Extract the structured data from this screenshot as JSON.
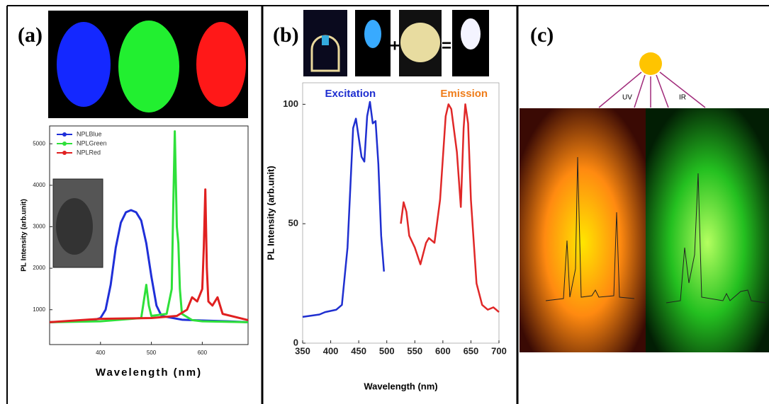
{
  "panel_labels": [
    "(a)",
    "(b)",
    "(c)"
  ],
  "led_symbols": [
    "+",
    "="
  ],
  "panel_c_labels": [
    "UV",
    "IR"
  ],
  "chart_data": [
    {
      "type": "line",
      "xlabel": "Wavelength (nm)",
      "ylabel": "PL Intensity (arb.unit)",
      "xlim": [
        300,
        690
      ],
      "ylim": [
        160,
        5430
      ],
      "xticks": [
        400,
        500,
        600
      ],
      "yticks": [
        1000,
        2000,
        3000,
        4000,
        5000
      ],
      "legend": "upper left",
      "series": [
        {
          "name": "NPLBlue",
          "color": "#1f2fd8",
          "x": [
            300,
            350,
            390,
            400,
            410,
            420,
            430,
            440,
            450,
            460,
            470,
            480,
            490,
            500,
            510,
            520,
            560,
            600,
            650,
            690
          ],
          "values": [
            700,
            720,
            760,
            800,
            1000,
            1600,
            2500,
            3100,
            3350,
            3400,
            3350,
            3150,
            2600,
            1800,
            1100,
            850,
            760,
            740,
            720,
            700
          ]
        },
        {
          "name": "NPLGreen",
          "color": "#2ee03a",
          "x": [
            300,
            400,
            480,
            485,
            490,
            495,
            500,
            530,
            540,
            543,
            546,
            550,
            553,
            556,
            560,
            580,
            600,
            690
          ],
          "values": [
            700,
            720,
            800,
            1200,
            1600,
            1100,
            850,
            900,
            1500,
            3500,
            5300,
            3000,
            2600,
            1500,
            900,
            750,
            720,
            700
          ]
        },
        {
          "name": "NPLRed",
          "color": "#e02020",
          "x": [
            300,
            400,
            500,
            550,
            570,
            580,
            590,
            600,
            603,
            606,
            609,
            612,
            620,
            630,
            640,
            690
          ],
          "values": [
            700,
            780,
            800,
            850,
            1000,
            1300,
            1200,
            1500,
            2500,
            3900,
            2000,
            1200,
            1100,
            1300,
            900,
            750
          ]
        }
      ]
    },
    {
      "type": "line",
      "xlabel": "Wavelength (nm)",
      "ylabel": "PL Intensity (arb.unit)",
      "xlim": [
        350,
        700
      ],
      "ylim": [
        0,
        109
      ],
      "xticks": [
        350,
        400,
        450,
        500,
        550,
        600,
        650,
        700
      ],
      "yticks": [
        0,
        50,
        100
      ],
      "annotations": [
        "Excitation",
        "Emission"
      ],
      "series": [
        {
          "color": "#1f2fd0",
          "x": [
            350,
            380,
            390,
            410,
            420,
            430,
            440,
            445,
            455,
            460,
            465,
            470,
            475,
            480,
            485,
            490,
            495
          ],
          "values": [
            11,
            12,
            13,
            14,
            16,
            40,
            90,
            94,
            78,
            76,
            95,
            101,
            92,
            93,
            75,
            45,
            30
          ]
        },
        {
          "color": "#e02828",
          "x": [
            525,
            530,
            535,
            540,
            550,
            560,
            570,
            575,
            585,
            595,
            605,
            610,
            615,
            625,
            632,
            637,
            640,
            645,
            650,
            660,
            670,
            680,
            690,
            700
          ],
          "values": [
            50,
            59,
            55,
            45,
            40,
            33,
            42,
            44,
            42,
            60,
            95,
            100,
            98,
            80,
            57,
            90,
            100,
            92,
            60,
            25,
            16,
            14,
            15,
            13
          ]
        }
      ]
    }
  ]
}
